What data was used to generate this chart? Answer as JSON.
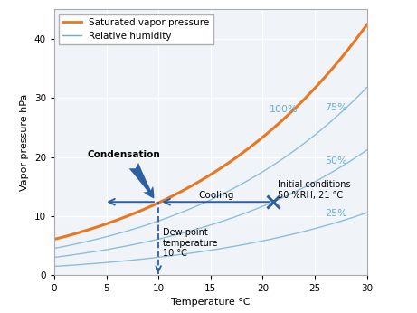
{
  "xlabel": "Temperature °C",
  "ylabel": "Vapor pressure hPa",
  "xlim": [
    0,
    30
  ],
  "ylim": [
    0,
    45
  ],
  "xticks": [
    0,
    5,
    10,
    15,
    20,
    25,
    30
  ],
  "yticks": [
    0,
    10,
    20,
    30,
    40
  ],
  "saturated_color": "#E87722",
  "rh_color": "#6aadd5",
  "rh_levels": [
    0.25,
    0.5,
    0.75,
    1.0
  ],
  "rh_labels": [
    "25%",
    "50%",
    "75%",
    "100%"
  ],
  "initial_T": 21,
  "initial_RH": 0.5,
  "dew_point_T": 10,
  "anno_color": "#2E5FA3",
  "anno_color_fill": "#3060A0",
  "bg_color": "#ffffff",
  "ax_bg": "#f0f4f8",
  "grid_color": "#ffffff",
  "label_fontsize": 8,
  "tick_fontsize": 7.5,
  "rh_label_fontsize": 8
}
